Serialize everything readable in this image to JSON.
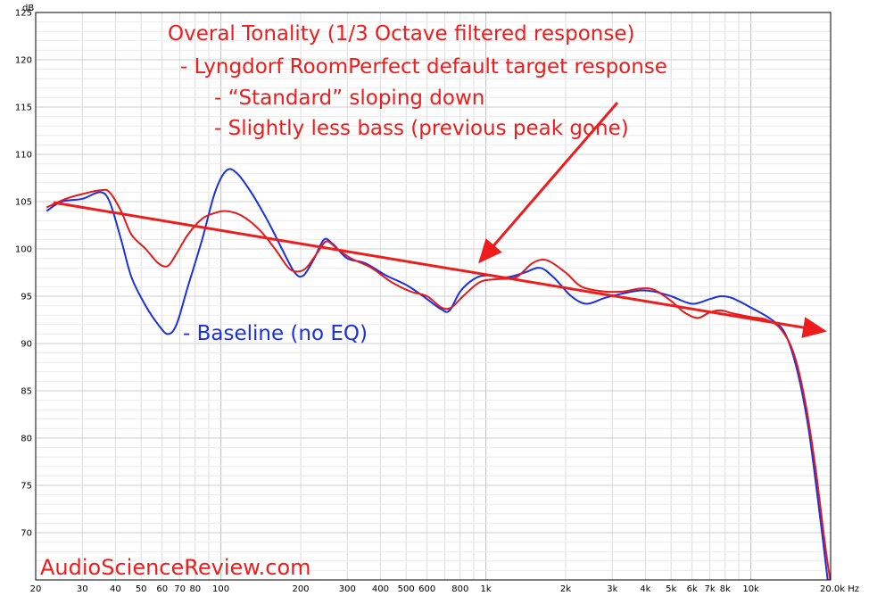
{
  "chart_data": {
    "type": "line",
    "ylabel": "dB",
    "xlim": [
      20,
      20000
    ],
    "ylim": [
      65,
      125
    ],
    "xscale": "log",
    "grid": true,
    "x_ticks": [
      {
        "v": 20,
        "label": "20"
      },
      {
        "v": 30,
        "label": "30"
      },
      {
        "v": 40,
        "label": "40"
      },
      {
        "v": 50,
        "label": "50"
      },
      {
        "v": 60,
        "label": "60"
      },
      {
        "v": 70,
        "label": "70"
      },
      {
        "v": 80,
        "label": "80"
      },
      {
        "v": 100,
        "label": "100"
      },
      {
        "v": 200,
        "label": "200"
      },
      {
        "v": 300,
        "label": "300"
      },
      {
        "v": 400,
        "label": "400"
      },
      {
        "v": 500,
        "label": "500"
      },
      {
        "v": 600,
        "label": "600"
      },
      {
        "v": 800,
        "label": "800"
      },
      {
        "v": 1000,
        "label": "1k"
      },
      {
        "v": 2000,
        "label": "2k"
      },
      {
        "v": 3000,
        "label": "3k"
      },
      {
        "v": 4000,
        "label": "4k"
      },
      {
        "v": 5000,
        "label": "5k"
      },
      {
        "v": 6000,
        "label": "6k"
      },
      {
        "v": 7000,
        "label": "7k"
      },
      {
        "v": 8000,
        "label": "8k"
      },
      {
        "v": 10000,
        "label": "10k"
      },
      {
        "v": 20000,
        "label": "20.0k Hz"
      }
    ],
    "y_ticks": [
      70,
      75,
      80,
      85,
      90,
      95,
      100,
      105,
      110,
      115,
      120,
      125
    ],
    "series": [
      {
        "name": "Baseline (no EQ)",
        "color": "#1b30e0",
        "points": [
          [
            22,
            104.0
          ],
          [
            25,
            105.0
          ],
          [
            30,
            105.3
          ],
          [
            35,
            106.0
          ],
          [
            38,
            105.0
          ],
          [
            42,
            101.0
          ],
          [
            46,
            97.0
          ],
          [
            52,
            94.0
          ],
          [
            58,
            92.0
          ],
          [
            63,
            91.0
          ],
          [
            68,
            92.0
          ],
          [
            75,
            96.0
          ],
          [
            85,
            101.0
          ],
          [
            95,
            106.0
          ],
          [
            105,
            108.3
          ],
          [
            115,
            108.0
          ],
          [
            130,
            106.0
          ],
          [
            150,
            103.0
          ],
          [
            170,
            100.0
          ],
          [
            190,
            97.5
          ],
          [
            205,
            97.2
          ],
          [
            225,
            99.0
          ],
          [
            245,
            101.0
          ],
          [
            265,
            100.5
          ],
          [
            300,
            99.0
          ],
          [
            350,
            98.5
          ],
          [
            420,
            97.2
          ],
          [
            500,
            96.2
          ],
          [
            580,
            95.0
          ],
          [
            680,
            93.6
          ],
          [
            730,
            93.5
          ],
          [
            800,
            95.5
          ],
          [
            900,
            96.8
          ],
          [
            1000,
            97.2
          ],
          [
            1200,
            97.0
          ],
          [
            1400,
            97.5
          ],
          [
            1600,
            98.0
          ],
          [
            1800,
            97.0
          ],
          [
            2100,
            95.0
          ],
          [
            2400,
            94.2
          ],
          [
            2800,
            94.8
          ],
          [
            3300,
            95.3
          ],
          [
            3800,
            95.6
          ],
          [
            4300,
            95.5
          ],
          [
            5000,
            95.0
          ],
          [
            6000,
            94.2
          ],
          [
            7000,
            94.7
          ],
          [
            7700,
            95.0
          ],
          [
            8500,
            94.8
          ],
          [
            10000,
            93.8
          ],
          [
            12000,
            92.5
          ],
          [
            13500,
            91.0
          ],
          [
            15000,
            87.0
          ],
          [
            16500,
            81.0
          ],
          [
            18000,
            73.0
          ],
          [
            19500,
            65.0
          ]
        ]
      },
      {
        "name": "RoomPerfect",
        "color": "#e41a1a",
        "points": [
          [
            22,
            104.4
          ],
          [
            26,
            105.3
          ],
          [
            30,
            105.8
          ],
          [
            35,
            106.2
          ],
          [
            38,
            106.0
          ],
          [
            42,
            104.0
          ],
          [
            46,
            101.5
          ],
          [
            52,
            100.0
          ],
          [
            58,
            98.5
          ],
          [
            63,
            98.2
          ],
          [
            68,
            99.5
          ],
          [
            75,
            101.5
          ],
          [
            85,
            103.2
          ],
          [
            95,
            103.8
          ],
          [
            105,
            104.0
          ],
          [
            120,
            103.5
          ],
          [
            140,
            102.0
          ],
          [
            160,
            100.0
          ],
          [
            180,
            98.0
          ],
          [
            195,
            97.6
          ],
          [
            210,
            98.0
          ],
          [
            230,
            99.5
          ],
          [
            250,
            100.8
          ],
          [
            275,
            100.0
          ],
          [
            310,
            99.0
          ],
          [
            370,
            98.0
          ],
          [
            440,
            96.5
          ],
          [
            520,
            95.5
          ],
          [
            600,
            95.0
          ],
          [
            680,
            93.8
          ],
          [
            740,
            93.8
          ],
          [
            820,
            95.0
          ],
          [
            950,
            96.5
          ],
          [
            1100,
            96.8
          ],
          [
            1300,
            97.0
          ],
          [
            1500,
            98.5
          ],
          [
            1700,
            98.8
          ],
          [
            2000,
            97.5
          ],
          [
            2300,
            96.0
          ],
          [
            2800,
            95.5
          ],
          [
            3300,
            95.5
          ],
          [
            3800,
            95.8
          ],
          [
            4300,
            95.7
          ],
          [
            5000,
            94.5
          ],
          [
            5600,
            93.3
          ],
          [
            6300,
            92.7
          ],
          [
            7000,
            93.3
          ],
          [
            7700,
            93.5
          ],
          [
            8500,
            93.2
          ],
          [
            10000,
            92.8
          ],
          [
            11500,
            92.5
          ],
          [
            13000,
            91.5
          ],
          [
            14500,
            89.0
          ],
          [
            16000,
            84.0
          ],
          [
            17500,
            77.0
          ],
          [
            19000,
            69.0
          ],
          [
            19900,
            65.0
          ]
        ]
      }
    ]
  },
  "annotations": {
    "line1": "Overal Tonality (1/3 Octave filtered response)",
    "line2": "- Lyngdorf RoomPerfect default target response",
    "line3": "- “Standard” sloping down",
    "line4": "- Slightly less bass (previous peak gone)",
    "baseline_label": "- Baseline (no EQ)"
  },
  "watermark": "AudioScienceReview.com",
  "colors": {
    "annotation": "#ee1c1c",
    "baseline_text": "#1b30e0",
    "grid": "#d4d4d4",
    "frame": "#000000"
  }
}
